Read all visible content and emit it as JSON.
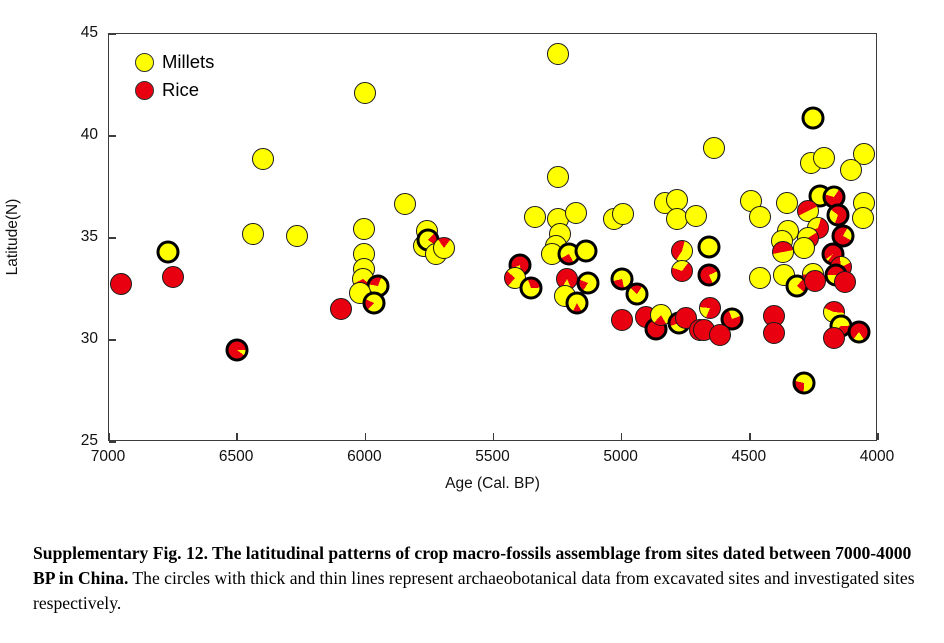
{
  "caption": {
    "bold": "Supplementary Fig. 12. The latitudinal patterns of crop macro-fossils assemblage from sites dated between 7000-4000 BP in China.",
    "regular": " The circles with thick and thin lines represent archaeobotanical data from excavated sites and investigated sites respectively."
  },
  "chart_data": {
    "type": "scatter",
    "title": "",
    "xlabel": "Age (Cal. BP)",
    "ylabel": "Latitude(N)",
    "xlim": [
      7000,
      4000
    ],
    "ylim": [
      25,
      45
    ],
    "x_axis_reversed": true,
    "grid": false,
    "x_ticks": [
      7000,
      6500,
      6000,
      5500,
      5000,
      4500,
      4000
    ],
    "y_ticks": [
      45,
      40,
      35,
      30,
      25
    ],
    "legend_position": "top-left-inside",
    "legend": [
      {
        "label": "Millets",
        "color": "#ffff00"
      },
      {
        "label": "Rice",
        "color": "#e80011"
      }
    ],
    "colors": {
      "millets": "#ffff00",
      "rice": "#e80011",
      "outline": "#000000"
    },
    "note": "each point is a pie; millet_frac = yellow fraction, rest red; excavated=true drawn with thick outline",
    "points": [
      {
        "age": 6955,
        "lat": 32.75,
        "millet_frac": 0.0,
        "excavated": false
      },
      {
        "age": 6770,
        "lat": 34.3,
        "millet_frac": 1.0,
        "excavated": true
      },
      {
        "age": 6750,
        "lat": 33.1,
        "millet_frac": 0.0,
        "excavated": false
      },
      {
        "age": 6500,
        "lat": 29.5,
        "millet_frac": 0.1,
        "excavated": true
      },
      {
        "age": 6440,
        "lat": 35.2,
        "millet_frac": 1.0,
        "excavated": false
      },
      {
        "age": 6400,
        "lat": 38.85,
        "millet_frac": 1.0,
        "excavated": false
      },
      {
        "age": 6265,
        "lat": 35.1,
        "millet_frac": 1.0,
        "excavated": false
      },
      {
        "age": 6095,
        "lat": 31.5,
        "millet_frac": 0.0,
        "excavated": false
      },
      {
        "age": 6000,
        "lat": 42.1,
        "millet_frac": 1.0,
        "excavated": false
      },
      {
        "age": 6005,
        "lat": 35.45,
        "millet_frac": 1.0,
        "excavated": false
      },
      {
        "age": 6005,
        "lat": 34.2,
        "millet_frac": 1.0,
        "excavated": false
      },
      {
        "age": 6005,
        "lat": 33.5,
        "millet_frac": 1.0,
        "excavated": false
      },
      {
        "age": 6010,
        "lat": 33.0,
        "millet_frac": 0.68,
        "excavated": false
      },
      {
        "age": 5950,
        "lat": 32.65,
        "millet_frac": 0.72,
        "excavated": true
      },
      {
        "age": 6020,
        "lat": 32.3,
        "millet_frac": 1.0,
        "excavated": false
      },
      {
        "age": 5965,
        "lat": 31.8,
        "millet_frac": 0.8,
        "excavated": true
      },
      {
        "age": 5845,
        "lat": 36.65,
        "millet_frac": 1.0,
        "excavated": false
      },
      {
        "age": 5760,
        "lat": 35.35,
        "millet_frac": 1.0,
        "excavated": false
      },
      {
        "age": 5770,
        "lat": 34.6,
        "millet_frac": 1.0,
        "excavated": false
      },
      {
        "age": 5755,
        "lat": 34.9,
        "millet_frac": 0.78,
        "excavated": true
      },
      {
        "age": 5725,
        "lat": 34.2,
        "millet_frac": 1.0,
        "excavated": false
      },
      {
        "age": 5695,
        "lat": 34.5,
        "millet_frac": 0.8,
        "excavated": false
      },
      {
        "age": 5395,
        "lat": 33.7,
        "millet_frac": 0.2,
        "excavated": true
      },
      {
        "age": 5415,
        "lat": 33.05,
        "millet_frac": 0.75,
        "excavated": false
      },
      {
        "age": 5355,
        "lat": 32.55,
        "millet_frac": 0.7,
        "excavated": true
      },
      {
        "age": 5340,
        "lat": 36.05,
        "millet_frac": 1.0,
        "excavated": false
      },
      {
        "age": 5250,
        "lat": 44.0,
        "millet_frac": 1.0,
        "excavated": false
      },
      {
        "age": 5250,
        "lat": 38.0,
        "millet_frac": 1.0,
        "excavated": false
      },
      {
        "age": 5250,
        "lat": 35.95,
        "millet_frac": 1.0,
        "excavated": false
      },
      {
        "age": 5180,
        "lat": 36.25,
        "millet_frac": 1.0,
        "excavated": false
      },
      {
        "age": 5240,
        "lat": 35.2,
        "millet_frac": 1.0,
        "excavated": false
      },
      {
        "age": 5255,
        "lat": 34.6,
        "millet_frac": 1.0,
        "excavated": false
      },
      {
        "age": 5270,
        "lat": 34.2,
        "millet_frac": 1.0,
        "excavated": false
      },
      {
        "age": 5205,
        "lat": 34.2,
        "millet_frac": 0.75,
        "excavated": true
      },
      {
        "age": 5140,
        "lat": 34.35,
        "millet_frac": 1.0,
        "excavated": true
      },
      {
        "age": 5215,
        "lat": 33.0,
        "millet_frac": 0.15,
        "excavated": false
      },
      {
        "age": 5130,
        "lat": 32.8,
        "millet_frac": 0.78,
        "excavated": true
      },
      {
        "age": 5220,
        "lat": 32.15,
        "millet_frac": 1.0,
        "excavated": false
      },
      {
        "age": 5175,
        "lat": 31.8,
        "millet_frac": 0.85,
        "excavated": true
      },
      {
        "age": 5030,
        "lat": 35.95,
        "millet_frac": 1.0,
        "excavated": false
      },
      {
        "age": 4995,
        "lat": 36.2,
        "millet_frac": 1.0,
        "excavated": false
      },
      {
        "age": 5000,
        "lat": 33.0,
        "millet_frac": 0.75,
        "excavated": true
      },
      {
        "age": 4940,
        "lat": 32.25,
        "millet_frac": 0.78,
        "excavated": true
      },
      {
        "age": 5000,
        "lat": 31.0,
        "millet_frac": 0.0,
        "excavated": false
      },
      {
        "age": 4905,
        "lat": 31.15,
        "millet_frac": 0.0,
        "excavated": false
      },
      {
        "age": 4865,
        "lat": 30.55,
        "millet_frac": 0.0,
        "excavated": true
      },
      {
        "age": 4845,
        "lat": 31.25,
        "millet_frac": 0.8,
        "excavated": false
      },
      {
        "age": 4775,
        "lat": 30.85,
        "millet_frac": 0.7,
        "excavated": true
      },
      {
        "age": 4750,
        "lat": 31.1,
        "millet_frac": 0.0,
        "excavated": false
      },
      {
        "age": 4695,
        "lat": 30.5,
        "millet_frac": 0.0,
        "excavated": false
      },
      {
        "age": 4830,
        "lat": 36.7,
        "millet_frac": 1.0,
        "excavated": false
      },
      {
        "age": 4785,
        "lat": 36.85,
        "millet_frac": 1.0,
        "excavated": false
      },
      {
        "age": 4785,
        "lat": 35.95,
        "millet_frac": 1.0,
        "excavated": false
      },
      {
        "age": 4710,
        "lat": 36.1,
        "millet_frac": 1.0,
        "excavated": false
      },
      {
        "age": 4640,
        "lat": 39.4,
        "millet_frac": 1.0,
        "excavated": false
      },
      {
        "age": 4765,
        "lat": 34.35,
        "millet_frac": 0.55,
        "excavated": false
      },
      {
        "age": 4660,
        "lat": 34.55,
        "millet_frac": 1.0,
        "excavated": true
      },
      {
        "age": 4765,
        "lat": 33.4,
        "millet_frac": 0.3,
        "excavated": false
      },
      {
        "age": 4660,
        "lat": 33.2,
        "millet_frac": 0.25,
        "excavated": true
      },
      {
        "age": 4655,
        "lat": 31.55,
        "millet_frac": 0.2,
        "excavated": false
      },
      {
        "age": 4570,
        "lat": 31.05,
        "millet_frac": 0.25,
        "excavated": true
      },
      {
        "age": 4680,
        "lat": 30.5,
        "millet_frac": 0.0,
        "excavated": false
      },
      {
        "age": 4615,
        "lat": 30.25,
        "millet_frac": 0.0,
        "excavated": false
      },
      {
        "age": 4495,
        "lat": 36.8,
        "millet_frac": 1.0,
        "excavated": false
      },
      {
        "age": 4460,
        "lat": 36.05,
        "millet_frac": 1.0,
        "excavated": false
      },
      {
        "age": 4355,
        "lat": 36.7,
        "millet_frac": 1.0,
        "excavated": false
      },
      {
        "age": 4405,
        "lat": 31.2,
        "millet_frac": 0.0,
        "excavated": false
      },
      {
        "age": 4405,
        "lat": 30.35,
        "millet_frac": 0.0,
        "excavated": false
      },
      {
        "age": 4352,
        "lat": 35.35,
        "millet_frac": 1.0,
        "excavated": false
      },
      {
        "age": 4375,
        "lat": 34.85,
        "millet_frac": 1.0,
        "excavated": false
      },
      {
        "age": 4460,
        "lat": 33.05,
        "millet_frac": 1.0,
        "excavated": false
      },
      {
        "age": 4365,
        "lat": 33.2,
        "millet_frac": 1.0,
        "excavated": false
      },
      {
        "age": 4255,
        "lat": 40.9,
        "millet_frac": 1.0,
        "excavated": true
      },
      {
        "age": 4260,
        "lat": 38.7,
        "millet_frac": 1.0,
        "excavated": false
      },
      {
        "age": 4210,
        "lat": 38.9,
        "millet_frac": 1.0,
        "excavated": false
      },
      {
        "age": 4055,
        "lat": 39.1,
        "millet_frac": 1.0,
        "excavated": false
      },
      {
        "age": 4105,
        "lat": 38.35,
        "millet_frac": 1.0,
        "excavated": false
      },
      {
        "age": 4225,
        "lat": 37.05,
        "millet_frac": 1.0,
        "excavated": true
      },
      {
        "age": 4170,
        "lat": 37.0,
        "millet_frac": 0.3,
        "excavated": true
      },
      {
        "age": 4275,
        "lat": 36.3,
        "millet_frac": 0.5,
        "excavated": false
      },
      {
        "age": 4155,
        "lat": 36.15,
        "millet_frac": 0.3,
        "excavated": true
      },
      {
        "age": 4055,
        "lat": 36.7,
        "millet_frac": 1.0,
        "excavated": false
      },
      {
        "age": 4060,
        "lat": 36.0,
        "millet_frac": 1.0,
        "excavated": false
      },
      {
        "age": 4235,
        "lat": 35.5,
        "millet_frac": 0.35,
        "excavated": false
      },
      {
        "age": 4135,
        "lat": 35.1,
        "millet_frac": 0.25,
        "excavated": true
      },
      {
        "age": 4272,
        "lat": 35.0,
        "millet_frac": 0.7,
        "excavated": false
      },
      {
        "age": 4290,
        "lat": 34.5,
        "millet_frac": 1.0,
        "excavated": false
      },
      {
        "age": 4372,
        "lat": 34.3,
        "millet_frac": 0.5,
        "excavated": false
      },
      {
        "age": 4175,
        "lat": 34.2,
        "millet_frac": 0.05,
        "excavated": true
      },
      {
        "age": 4145,
        "lat": 33.6,
        "millet_frac": 0.2,
        "excavated": false
      },
      {
        "age": 4315,
        "lat": 32.65,
        "millet_frac": 0.75,
        "excavated": true
      },
      {
        "age": 4255,
        "lat": 33.25,
        "millet_frac": 0.65,
        "excavated": false
      },
      {
        "age": 4245,
        "lat": 32.9,
        "millet_frac": 0.0,
        "excavated": false
      },
      {
        "age": 4165,
        "lat": 33.2,
        "millet_frac": 0.25,
        "excavated": true
      },
      {
        "age": 4130,
        "lat": 32.85,
        "millet_frac": 0.0,
        "excavated": false
      },
      {
        "age": 4172,
        "lat": 31.35,
        "millet_frac": 0.55,
        "excavated": false
      },
      {
        "age": 4145,
        "lat": 30.7,
        "millet_frac": 0.6,
        "excavated": true
      },
      {
        "age": 4172,
        "lat": 30.1,
        "millet_frac": 0.0,
        "excavated": false
      },
      {
        "age": 4075,
        "lat": 30.4,
        "millet_frac": 0.2,
        "excavated": true
      },
      {
        "age": 4290,
        "lat": 27.9,
        "millet_frac": 0.72,
        "excavated": true
      }
    ]
  }
}
